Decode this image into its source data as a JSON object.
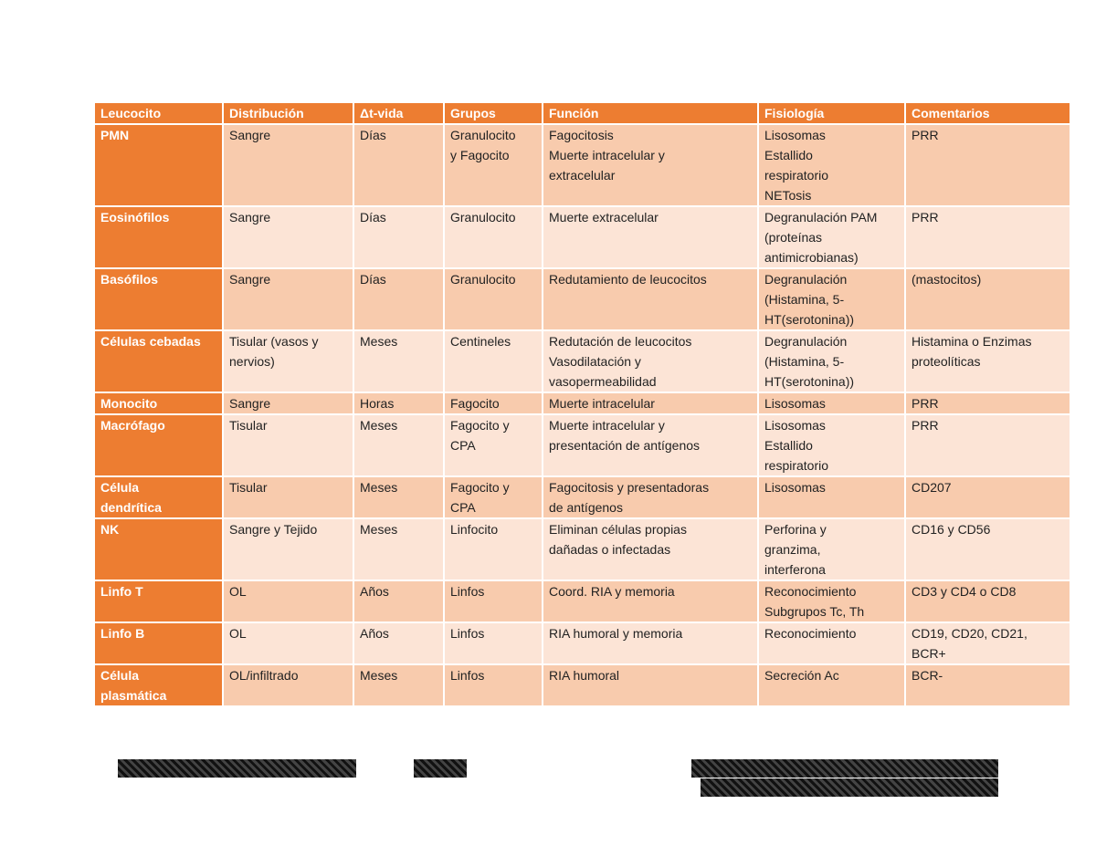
{
  "table": {
    "header": [
      "Leucocito",
      "Distribución",
      "Δt-vida",
      "Grupos",
      "Función",
      "Fisiología",
      "Comentarios"
    ],
    "rows": [
      [
        "PMN",
        "Sangre",
        "Días",
        "Granulocito\ny Fagocito",
        "Fagocitosis\nMuerte intracelular y\nextracelular",
        "Lisosomas\nEstallido\nrespiratorio\nNETosis",
        "PRR"
      ],
      [
        "Eosinófilos",
        "Sangre",
        "Días",
        "Granulocito",
        "Muerte extracelular",
        "Degranulación PAM\n(proteínas\nantimicrobianas)",
        "PRR"
      ],
      [
        "Basófilos",
        "Sangre",
        "Días",
        "Granulocito",
        "Redutamiento de leucocitos",
        "Degranulación\n(Histamina, 5-\nHT(serotonina))",
        "(mastocitos)"
      ],
      [
        "Células cebadas",
        "Tisular (vasos y\nnervios)",
        "Meses",
        "Centineles",
        "Redutación de leucocitos\nVasodilatación y\nvasopermeabilidad",
        "Degranulación\n(Histamina, 5-\nHT(serotonina))",
        "Histamina o Enzimas\nproteolíticas"
      ],
      [
        "Monocito",
        "Sangre",
        "Horas",
        "Fagocito",
        "Muerte intracelular",
        "Lisosomas",
        "PRR"
      ],
      [
        "Macrófago",
        "Tisular",
        "Meses",
        "Fagocito y\nCPA",
        "Muerte intracelular y\npresentación de antígenos",
        "Lisosomas\nEstallido\nrespiratorio",
        "PRR"
      ],
      [
        "Célula\ndendrítica",
        "Tisular",
        "Meses",
        "Fagocito y\nCPA",
        "Fagocitosis y presentadoras\nde antígenos",
        "Lisosomas",
        "CD207"
      ],
      [
        "NK",
        "Sangre y Tejido",
        "Meses",
        "Linfocito",
        "Eliminan células propias\ndañadas o infectadas",
        "Perforina y\ngranzima,\ninterferona",
        "CD16 y CD56"
      ],
      [
        "Linfo T",
        "OL",
        "Años",
        "Linfos",
        "Coord. RIA y memoria",
        "Reconocimiento\nSubgrupos Tc, Th",
        "CD3 y CD4 o CD8"
      ],
      [
        "Linfo B",
        "OL",
        "Años",
        "Linfos",
        "RIA humoral y memoria",
        "Reconocimiento",
        "CD19, CD20, CD21,\nBCR+"
      ],
      [
        "Célula\nplasmática",
        "OL/infiltrado",
        "Meses",
        "Linfos",
        "RIA humoral",
        "Secreción Ac",
        "BCR-"
      ]
    ]
  }
}
